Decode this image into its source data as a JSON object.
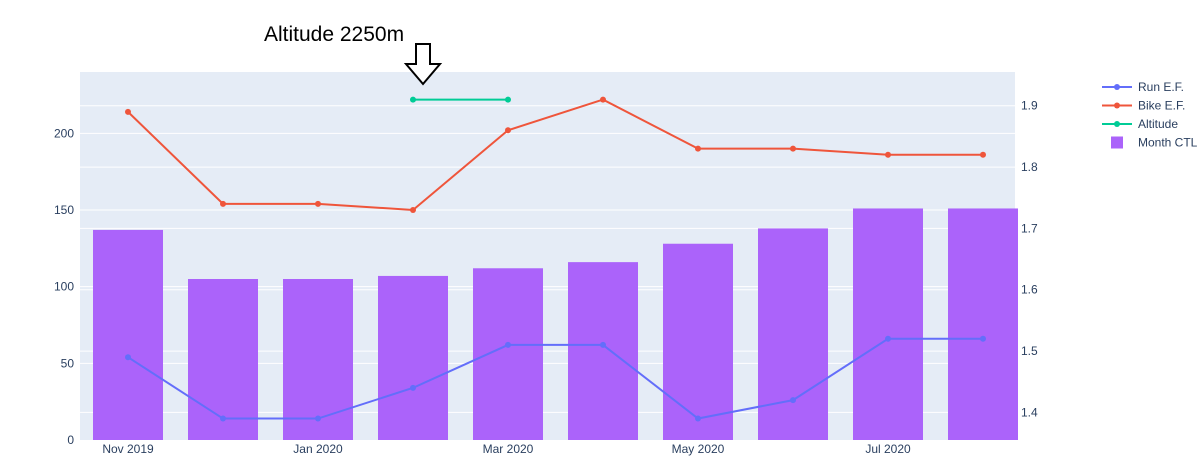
{
  "chart_data": {
    "type": "bar",
    "x": [
      "2019-11",
      "2019-12",
      "2020-01",
      "2020-02",
      "2020-03",
      "2020-04",
      "2020-05",
      "2020-06",
      "2020-07",
      "2020-08"
    ],
    "x_tick_labels": [
      "Nov 2019",
      "Jan 2020",
      "Mar 2020",
      "May 2020",
      "Jul 2020"
    ],
    "x_tick_months": [
      "2019-11",
      "2020-01",
      "2020-03",
      "2020-05",
      "2020-07"
    ],
    "y_left": {
      "range": [
        0,
        240
      ],
      "ticks": [
        0,
        50,
        100,
        150,
        200
      ]
    },
    "y_right": {
      "range": [
        1.355,
        1.955
      ],
      "ticks": [
        "1.4",
        "1.5",
        "1.6",
        "1.7",
        "1.8",
        "1.9"
      ]
    },
    "grid": true,
    "legend_position": "top-right",
    "series": [
      {
        "name": "Run E.F.",
        "type": "line",
        "axis": "right",
        "color": "#636efa",
        "values": [
          1.49,
          1.39,
          1.39,
          1.44,
          1.51,
          1.51,
          1.39,
          1.42,
          1.52,
          1.52
        ]
      },
      {
        "name": "Bike E.F.",
        "type": "line",
        "axis": "right",
        "color": "#ef553b",
        "values": [
          1.89,
          1.74,
          1.74,
          1.73,
          1.86,
          1.91,
          1.83,
          1.83,
          1.82,
          1.82
        ]
      },
      {
        "name": "Altitude",
        "type": "line",
        "axis": "right",
        "color": "#00cc96",
        "x": [
          "2020-02",
          "2020-03"
        ],
        "values": [
          1.91,
          1.91
        ]
      },
      {
        "name": "Month CTL",
        "type": "bar",
        "axis": "left",
        "color": "#ab63fa",
        "values": [
          137,
          105,
          105,
          107,
          112,
          116,
          128,
          138,
          151,
          151
        ]
      }
    ],
    "annotations": [
      {
        "text": "Altitude 2250m",
        "at_month": "2020-02",
        "arrow": "down"
      }
    ]
  }
}
